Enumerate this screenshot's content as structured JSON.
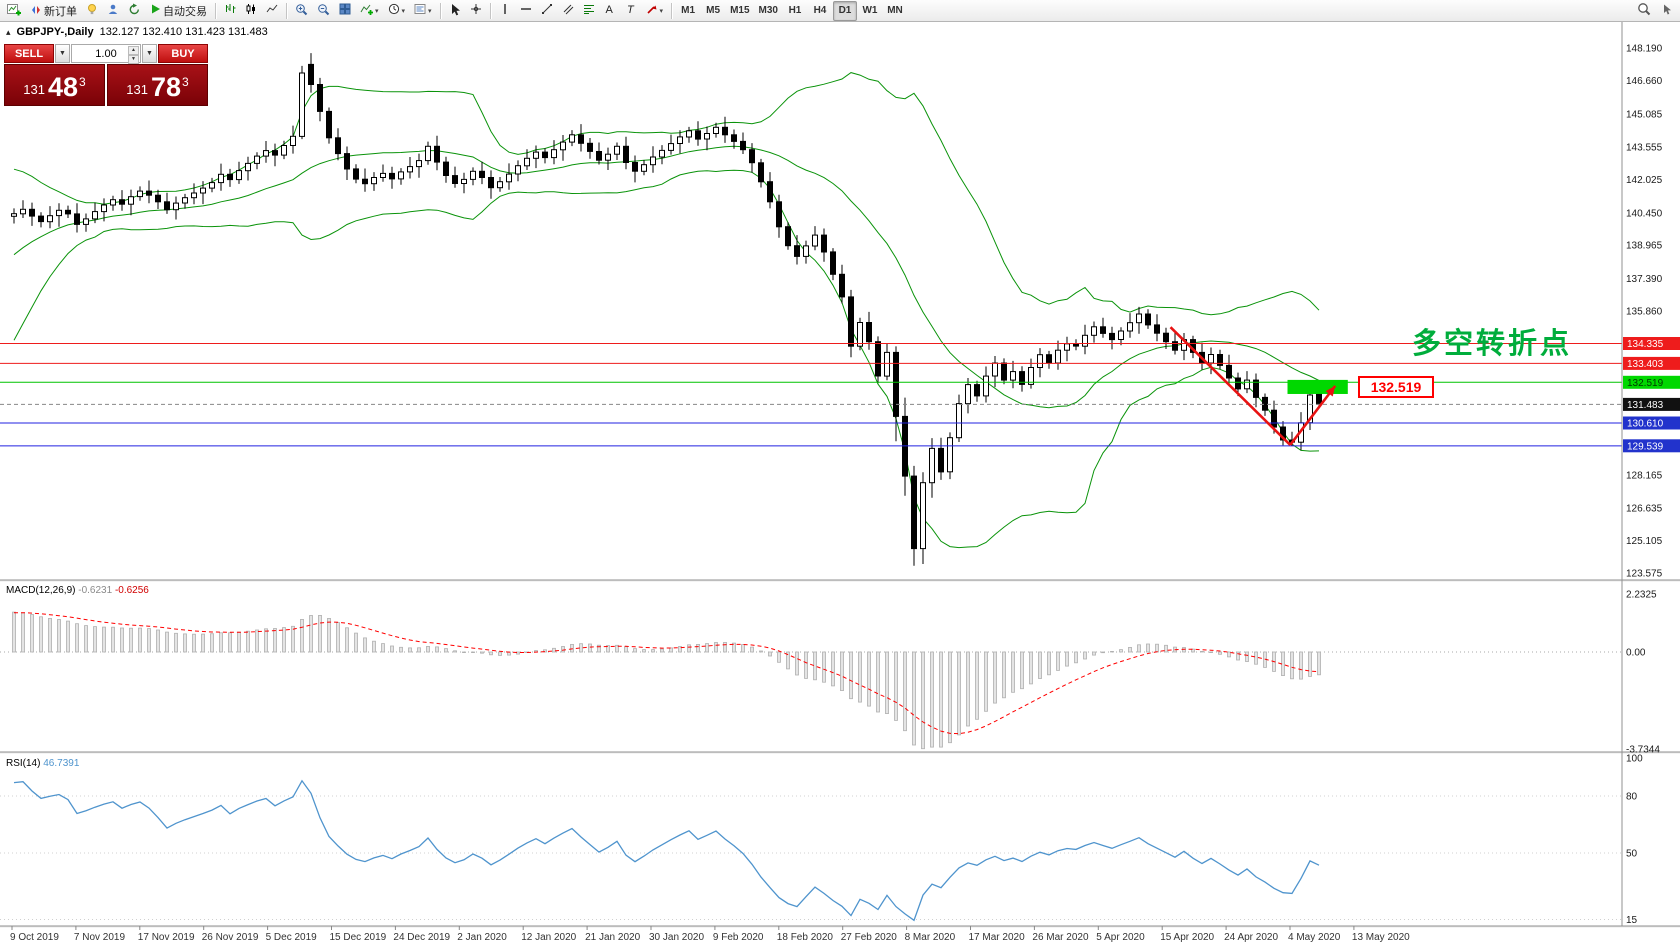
{
  "toolbar": {
    "new_order_label": "新订单",
    "auto_trading_label": "自动交易",
    "timeframes": [
      "M1",
      "M5",
      "M15",
      "M30",
      "H1",
      "H4",
      "D1",
      "W1",
      "MN"
    ],
    "active_timeframe": "D1"
  },
  "chart_header": {
    "collapse_icon": "▴",
    "symbol": "GBPJPY-,Daily",
    "ohlc": "132.127 132.410 131.423 131.483"
  },
  "trade_panel": {
    "sell_label": "SELL",
    "buy_label": "BUY",
    "volume": "1.00",
    "sell_price_main": "131",
    "sell_price_big": "48",
    "sell_price_sup": "3",
    "buy_price_main": "131",
    "buy_price_big": "78",
    "buy_price_sup": "3"
  },
  "panes": {
    "macd_title": "MACD(12,26,9)",
    "macd_value_main": "-0.6231",
    "macd_value_signal": "-0.6256",
    "rsi_title": "RSI(14)",
    "rsi_value": "46.7391"
  },
  "annotations": {
    "turning_point_text": "多空转折点",
    "turning_point_color": "#00ad3c",
    "price_tag": "132.519",
    "price_tag_color": "#ff0000"
  },
  "chart_data": {
    "type": "candlestick",
    "symbol": "GBPJPY",
    "period": "Daily",
    "last_ohlc": {
      "open": 132.127,
      "high": 132.41,
      "low": 131.423,
      "close": 131.483
    },
    "colors": {
      "bollinger": "#0a930a",
      "bull": "#ffffff",
      "bear": "#000000",
      "macd_hist_fill": "#e4e4e4",
      "macd_hist_stroke": "#b0b0b0",
      "macd_signal": "#ff0000",
      "rsi_line": "#4f94cd",
      "green_box": "#00d800",
      "trend_red": "#e81212"
    },
    "y_axis_ticks": [
      "148.190",
      "146.660",
      "145.085",
      "143.555",
      "142.025",
      "140.450",
      "138.965",
      "137.390",
      "135.860",
      "128.165",
      "126.635",
      "125.105",
      "123.575"
    ],
    "x_axis_dates": [
      "9 Oct 2019",
      "7 Nov 2019",
      "17 Nov 2019",
      "26 Nov 2019",
      "5 Dec 2019",
      "15 Dec 2019",
      "24 Dec 2019",
      "2 Jan 2020",
      "12 Jan 2020",
      "21 Jan 2020",
      "30 Jan 2020",
      "9 Feb 2020",
      "18 Feb 2020",
      "27 Feb 2020",
      "8 Mar 2020",
      "17 Mar 2020",
      "26 Mar 2020",
      "5 Apr 2020",
      "15 Apr 2020",
      "24 Apr 2020",
      "4 May 2020",
      "13 May 2020"
    ],
    "price_levels": [
      {
        "price": 134.335,
        "label": "134.335",
        "line": "#ee1c1c",
        "dash": false,
        "badge": "#ee1c1c",
        "text": "#ffffff"
      },
      {
        "price": 133.403,
        "label": "133.403",
        "line": "#ee1c1c",
        "dash": false,
        "badge": "#ee1c1c",
        "text": "#ffffff"
      },
      {
        "price": 132.519,
        "label": "132.519",
        "line": "#00c400",
        "dash": false,
        "badge": "#00d800",
        "text": "#003800"
      },
      {
        "price": 131.483,
        "label": "131.483",
        "line": "#888888",
        "dash": true,
        "badge": "#111111",
        "text": "#ffffff"
      },
      {
        "price": 130.61,
        "label": "130.610",
        "line": "#2020e0",
        "dash": false,
        "badge": "#2233cc",
        "text": "#ffffff"
      },
      {
        "price": 129.539,
        "label": "129.539",
        "line": "#2020e0",
        "dash": false,
        "badge": "#2233cc",
        "text": "#ffffff"
      }
    ],
    "macd_axis": [
      "2.2325",
      "0.00",
      "-3.7344"
    ],
    "rsi_axis": [
      "100",
      "80",
      "50",
      "15"
    ],
    "indicators": {
      "bollinger": {
        "period": 20,
        "deviation": 2
      },
      "macd": {
        "fast": 12,
        "slow": 26,
        "signal": 9,
        "max": 2.2325,
        "min": -3.7344
      },
      "rsi": {
        "period": 14,
        "last": 46.7391
      }
    },
    "open_first": 140.3,
    "pre_closes": [
      133.6,
      134.1,
      134.7,
      135.3,
      136.1,
      136.8,
      137.4,
      138.1,
      138.7,
      139.2,
      138.9,
      139.4,
      139.9,
      140.2,
      139.8,
      140.1,
      140.4,
      140.2,
      140.0,
      140.3
    ],
    "closes": [
      140.42,
      140.63,
      140.31,
      140.05,
      140.33,
      140.58,
      140.41,
      139.92,
      140.18,
      140.52,
      140.83,
      141.08,
      140.87,
      141.22,
      141.48,
      141.29,
      140.98,
      140.61,
      140.92,
      141.17,
      141.39,
      141.62,
      141.88,
      142.27,
      142.02,
      142.44,
      142.78,
      143.12,
      143.38,
      143.17,
      143.62,
      144.05,
      147.02,
      146.48,
      145.22,
      143.98,
      143.24,
      142.52,
      142.04,
      141.83,
      142.12,
      142.31,
      142.05,
      142.38,
      142.63,
      142.91,
      143.58,
      142.84,
      142.21,
      141.84,
      142.03,
      142.41,
      142.12,
      141.64,
      141.92,
      142.28,
      142.67,
      143.02,
      143.31,
      143.05,
      143.42,
      143.78,
      144.12,
      143.72,
      143.34,
      142.93,
      143.21,
      143.58,
      142.82,
      142.41,
      142.72,
      143.08,
      143.39,
      143.71,
      144.02,
      144.31,
      143.92,
      144.18,
      144.47,
      144.12,
      143.81,
      143.42,
      142.81,
      141.92,
      140.98,
      139.81,
      138.92,
      138.42,
      138.91,
      139.42,
      138.63,
      137.58,
      136.52,
      134.21,
      135.32,
      134.42,
      132.81,
      133.92,
      130.92,
      128.12,
      124.72,
      127.81,
      129.42,
      128.32,
      129.92,
      131.52,
      132.41,
      131.88,
      132.81,
      133.42,
      132.62,
      133.02,
      132.42,
      133.21,
      133.81,
      133.42,
      134.02,
      134.32,
      134.21,
      134.72,
      135.12,
      134.81,
      134.52,
      134.92,
      135.31,
      135.72,
      135.21,
      134.82,
      134.42,
      134.02,
      134.52,
      133.92,
      133.42,
      133.82,
      133.31,
      132.72,
      132.21,
      132.62,
      131.81,
      131.21,
      130.42,
      129.81,
      129.71,
      130.62,
      131.92,
      131.483
    ],
    "special_candles": {
      "32": [
        144.05,
        147.35,
        143.92,
        147.02
      ],
      "33": [
        147.42,
        147.95,
        146.1,
        146.48
      ],
      "98": [
        133.92,
        134.2,
        129.75,
        130.92
      ],
      "99": [
        130.92,
        131.8,
        127.2,
        128.12
      ],
      "100": [
        128.12,
        128.6,
        123.92,
        124.72
      ],
      "101": [
        124.72,
        128.3,
        124.0,
        127.81
      ],
      "102": [
        127.81,
        129.9,
        127.1,
        129.42
      ],
      "141": [
        130.42,
        130.7,
        129.56,
        129.81
      ],
      "142": [
        129.81,
        130.2,
        129.55,
        129.71
      ],
      "145": [
        132.127,
        132.41,
        131.423,
        131.483
      ]
    },
    "wick_up": [
      0.25,
      0.42,
      0.31,
      0.18,
      0.45,
      0.33,
      0.22,
      0.5
    ],
    "wick_down": [
      0.34,
      0.2,
      0.46,
      0.27,
      0.31,
      0.52,
      0.19,
      0.38
    ],
    "drawings": {
      "green_box": {
        "c1": 141.5,
        "p1": 132.63,
        "c2": 148.2,
        "p2": 131.97
      },
      "trend_down": {
        "c1": 128.5,
        "p1": 135.1,
        "c2": 141.8,
        "p2": 129.58
      },
      "trend_up": {
        "c1": 141.8,
        "p1": 129.58,
        "c2": 146.8,
        "p2": 132.35,
        "arrow": true
      }
    }
  }
}
